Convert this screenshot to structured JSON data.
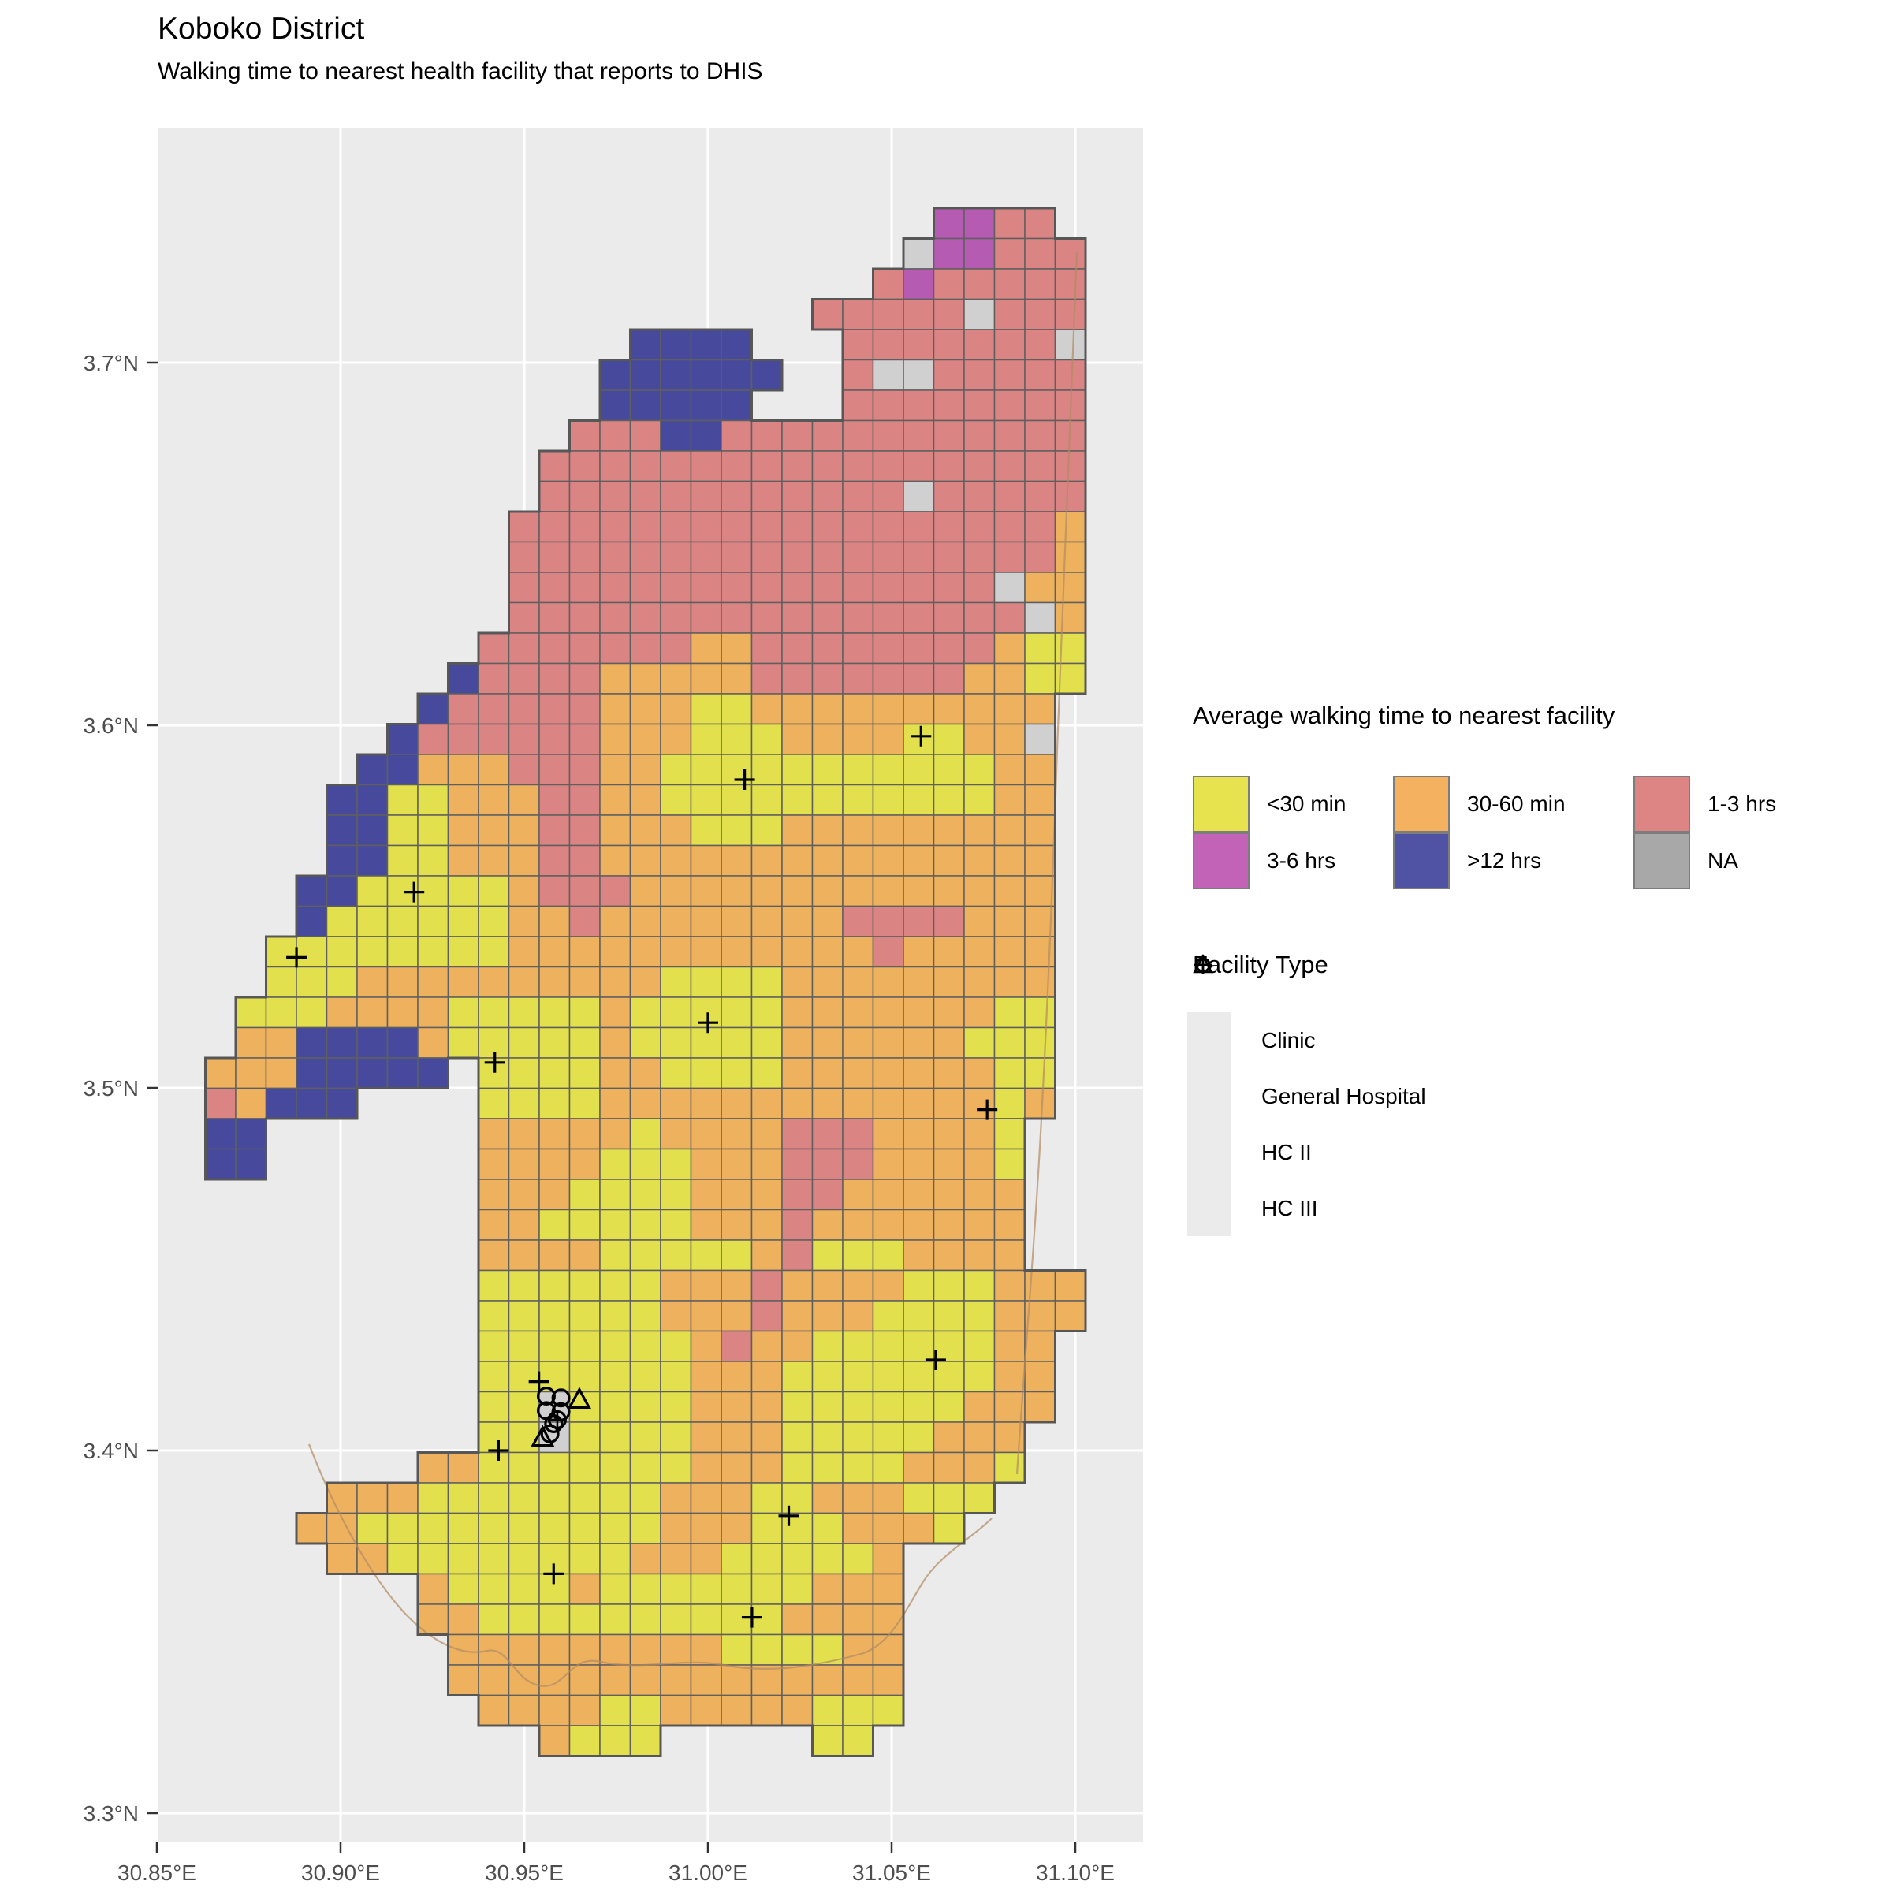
{
  "title": "Koboko District",
  "subtitle": "Walking time to nearest health facility that reports to DHIS",
  "walking_legend": {
    "title": "Average walking time to nearest facility",
    "items": [
      {
        "label": "<30 min",
        "code": "Y",
        "legend_color": "#e7e34f",
        "map_color": "#e2e04d"
      },
      {
        "label": "30-60 min",
        "code": "O",
        "legend_color": "#f4b260",
        "map_color": "#eeb25e"
      },
      {
        "label": "1-3 hrs",
        "code": "R",
        "legend_color": "#dd8484",
        "map_color": "#db8484"
      },
      {
        "label": "3-6 hrs",
        "code": "M",
        "legend_color": "#c263b8",
        "map_color": "#b55cb2"
      },
      {
        "label": ">12 hrs",
        "code": "B",
        "legend_color": "#5052a3",
        "map_color": "#474a9c"
      },
      {
        "label": "NA",
        "code": "N",
        "legend_color": "#a8a8a8",
        "map_color": "#d0d0d0"
      }
    ]
  },
  "facility_legend": {
    "title": "Facility Type",
    "items": [
      {
        "label": "Clinic",
        "symbol": "circle"
      },
      {
        "label": "General Hospital",
        "symbol": "circle-cross"
      },
      {
        "label": "HC II",
        "symbol": "triangle"
      },
      {
        "label": "HC III",
        "symbol": "plus"
      }
    ]
  },
  "x_axis": {
    "ticks": [
      {
        "label": "30.85°E",
        "value": 30.85
      },
      {
        "label": "30.90°E",
        "value": 30.9
      },
      {
        "label": "30.95°E",
        "value": 30.95
      },
      {
        "label": "31.00°E",
        "value": 31.0
      },
      {
        "label": "31.05°E",
        "value": 31.05
      },
      {
        "label": "31.10°E",
        "value": 31.1
      }
    ]
  },
  "y_axis": {
    "ticks": [
      {
        "label": "3.7°N",
        "value": 3.7
      },
      {
        "label": "3.6°N",
        "value": 3.6
      },
      {
        "label": "3.5°N",
        "value": 3.5
      },
      {
        "label": "3.4°N",
        "value": 3.4
      },
      {
        "label": "3.3°N",
        "value": 3.3
      }
    ]
  },
  "map": {
    "raster_rows": [
      ".........................MMRR...",
      "........................NMMRRR..",
      ".......................RMRRRRR..",
      ".....................RRRRRNRRR..",
      "...............BBBB...RRRRRRRN..",
      "..............BBBBBB..RNNRRRRR..",
      "..............BBBBB...RRRRRRRR..",
      ".............RRRBBRRRRRRRRRRRR..",
      "............RRRRRRRRRRRRRRRRRR..",
      "............RRRRRRRRRRRRNRRRRR..",
      "...........RRRRRRRRRRRRRRRRRRO..",
      "...........RRRRRRRRRRRRRRRRRRO..",
      "...........RRRRRRRRRRRRRRRRNOO..",
      "...........RRRRRRRRRRRRRRRRRNO..",
      "..........RRRRRRROORRRRRRRROYY..",
      ".........BRRRROOOOORRRRRRROOYY..",
      "........BRRRRROOOYYOOOOOOOOOO...",
      ".......BRRRRRROOOYYYOOOOYYOON...",
      "......BBOOORRROOYYYYYYYYYYYOO...",
      ".....BBYYOOORROOYYYYYYYYYYYOO...",
      ".....BBYYOOORROOOYYYOOOOOOOOO...",
      ".....BBYYOOORROOOOOOOOOOOOOOO...",
      "....BBYYYYYORRROOOOOOOOOOOOOO...",
      "....BYYYYYYOOROOOOOOOORRRROOO...",
      "...YYYYYYYYOOOOOOOOOOOOROOOOO...",
      "...YYYOOOOOOOOOOYYYYOOOOOOOOO...",
      "..YYYOOOOYYYYYOYYYYYOOOOOOOYY...",
      "..OOBBBBOYYYYYOYYYYYOOOOOOYYY...",
      ".OOOBBBBB.YYYYOOYYYYOOOOOOOYY...",
      ".ROBBB....YYYYOOOOOOOOOOOOOYO...",
      ".BB.......OOOOOYOOOORRROOOOY....",
      ".BB.......OOOOYYYOOORRROOOOY....",
      "..........OOOYYYYOOORROOOOOO....",
      "..........OOYYYYYOOOROOOOOOO....",
      "..........OOOOYYYYYORYYYOOOO....",
      "..........YYYYYYOOOROOOOYYYOOO..",
      "..........YYYYYYOOOROOOYYYYOOO..",
      "..........YYYYYYYOROOYYYYYYOO...",
      "..........YYYYYYYOOOYYYYYYYOO...",
      "..........YYNYYYYOOOYYYYYYOOO...",
      "..........YYNYYYYOOOYYYYYOOO....",
      "........OOYYYYYYYOOOYYYYOOOY....",
      ".....OOOYYYYYYYYOOOYYOOOYYY.....",
      "....OOYYYYYYYYYYOOOYYYOOOY......",
      ".....OOYYYYYYYYOOOYYYYYO........",
      "........OYYYYOYYYYYYYOOO........",
      "........OOYYYYYYYYYYOOOO........",
      ".........OOOOOOOOOYYYYOO........",
      ".........OOOOOOOOOOOOOOO........",
      "..........OOOOYYOOOOOYYY........",
      "............OYYY.....YY........."
    ],
    "facilities": [
      {
        "type": "HC III",
        "lon": 31.01,
        "lat": 3.585
      },
      {
        "type": "HC III",
        "lon": 31.058,
        "lat": 3.597
      },
      {
        "type": "HC III",
        "lon": 30.92,
        "lat": 3.554
      },
      {
        "type": "HC III",
        "lon": 30.888,
        "lat": 3.536
      },
      {
        "type": "HC III",
        "lon": 31.0,
        "lat": 3.518
      },
      {
        "type": "HC III",
        "lon": 30.942,
        "lat": 3.507
      },
      {
        "type": "HC III",
        "lon": 31.076,
        "lat": 3.494
      },
      {
        "type": "HC III",
        "lon": 30.954,
        "lat": 3.419
      },
      {
        "type": "HC III",
        "lon": 30.943,
        "lat": 3.4
      },
      {
        "type": "HC III",
        "lon": 31.062,
        "lat": 3.425
      },
      {
        "type": "HC III",
        "lon": 31.022,
        "lat": 3.382
      },
      {
        "type": "HC III",
        "lon": 30.958,
        "lat": 3.366
      },
      {
        "type": "HC III",
        "lon": 31.012,
        "lat": 3.354
      },
      {
        "type": "Clinic",
        "lon": 30.956,
        "lat": 3.415
      },
      {
        "type": "Clinic",
        "lon": 30.96,
        "lat": 3.4145
      },
      {
        "type": "Clinic",
        "lon": 30.956,
        "lat": 3.411
      },
      {
        "type": "Clinic",
        "lon": 30.96,
        "lat": 3.4107
      },
      {
        "type": "Clinic",
        "lon": 30.958,
        "lat": 3.4074
      },
      {
        "type": "Clinic",
        "lon": 30.957,
        "lat": 3.4046
      },
      {
        "type": "General Hospital",
        "lon": 30.959,
        "lat": 3.4085
      },
      {
        "type": "HC II",
        "lon": 30.965,
        "lat": 3.414
      },
      {
        "type": "HC II",
        "lon": 30.955,
        "lat": 3.4035
      }
    ]
  }
}
